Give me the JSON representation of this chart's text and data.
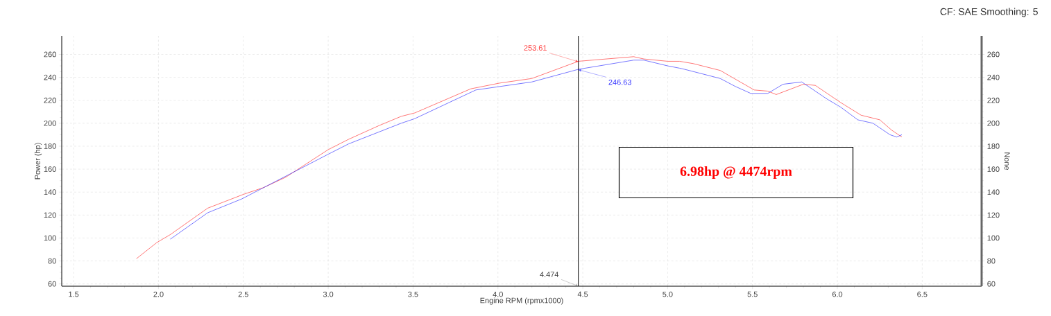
{
  "chart_data": {
    "type": "line",
    "subtitle": "CF: SAE Smoothing: 5",
    "xlabel": "Engine RPM (rpmx1000)",
    "ylabel": "Power (hp)",
    "y2label": "None",
    "series": [
      {
        "color": "#ff3b3b",
        "x": [
          1.87,
          1.99,
          2.07,
          2.29,
          2.5,
          2.62,
          2.75,
          3.0,
          3.12,
          3.3,
          3.43,
          3.51,
          3.84,
          4.01,
          4.2,
          4.474,
          4.8,
          4.86,
          5.0,
          5.07,
          5.15,
          5.31,
          5.51,
          5.59,
          5.64,
          5.8,
          5.87,
          6.02,
          6.14,
          6.25,
          6.32,
          6.38
        ],
        "values": [
          82,
          96,
          103,
          126,
          138,
          144,
          153,
          177,
          186,
          198,
          206,
          209,
          230,
          235,
          239,
          254,
          258,
          256,
          254,
          254,
          252,
          246,
          229,
          228,
          225,
          234,
          233,
          218,
          207,
          203,
          194,
          188
        ]
      },
      {
        "color": "#3b3bff",
        "x": [
          2.07,
          2.29,
          2.49,
          3.0,
          3.12,
          3.43,
          3.51,
          3.87,
          4.01,
          4.2,
          4.474,
          4.8,
          4.86,
          5.0,
          5.07,
          5.1,
          5.31,
          5.4,
          5.49,
          5.59,
          5.68,
          5.79,
          5.94,
          6.02,
          6.12,
          6.21,
          6.31,
          6.35,
          6.38
        ],
        "values": [
          99,
          122,
          134,
          173,
          182,
          200,
          204,
          229,
          232,
          236,
          247,
          255,
          255,
          250,
          248,
          247,
          239,
          232,
          226,
          226,
          234,
          236,
          221,
          214,
          203,
          200,
          190,
          188,
          190
        ]
      }
    ],
    "xlim": [
      1.43,
      6.85
    ],
    "ylim": [
      58,
      276
    ],
    "y2lim": [
      58,
      276
    ],
    "xticks": [
      {
        "value": 1.5,
        "label": "1.5"
      },
      {
        "value": 2,
        "label": "2.0"
      },
      {
        "value": 2.5,
        "label": "2.5"
      },
      {
        "value": 3,
        "label": "3.0"
      },
      {
        "value": 3.5,
        "label": "3.5"
      },
      {
        "value": 4,
        "label": "4.0"
      },
      {
        "value": 4.5,
        "label": "4.5"
      },
      {
        "value": 5,
        "label": "5.0"
      },
      {
        "value": 5.5,
        "label": "5.5"
      },
      {
        "value": 6,
        "label": "6.0"
      },
      {
        "value": 6.5,
        "label": "6.5"
      }
    ],
    "yticks": [
      60,
      80,
      100,
      120,
      140,
      160,
      180,
      200,
      220,
      240,
      260
    ],
    "y2ticks": [
      60,
      80,
      100,
      120,
      140,
      160,
      180,
      200,
      220,
      240,
      260
    ],
    "grid": true,
    "ref_lines": [
      {
        "axis": "x",
        "value": 4.474,
        "label": "4.474",
        "color": "#000000"
      }
    ],
    "annotations": [
      {
        "text": "253.61",
        "x": 4.474,
        "y": 253.61
      },
      {
        "text": "246.63",
        "x": 4.474,
        "y": 246.63
      },
      "6.98hp @ 4474rpm"
    ]
  }
}
